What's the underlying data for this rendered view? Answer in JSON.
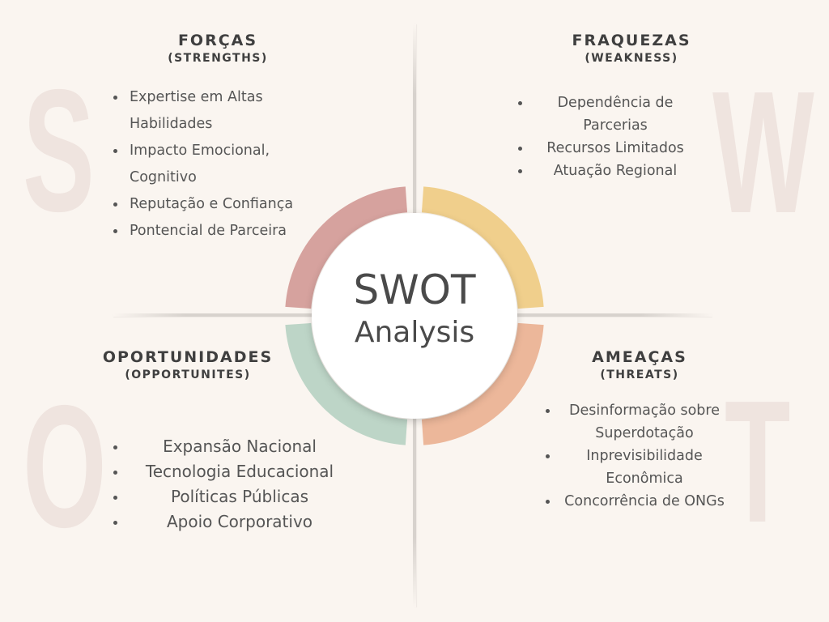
{
  "background_letters": [
    "S",
    "W",
    "O",
    "T"
  ],
  "center": {
    "title": "SWOT",
    "subtitle": "Analysis"
  },
  "colors": {
    "background": "#faf5f0",
    "strengths": "#d6a29e",
    "weakness": "#f0cf8c",
    "threats": "#ecb79a",
    "opportunities": "#bdd5c7",
    "watermark": "#efe4df",
    "text": "#555555",
    "heading": "#3f3f3f"
  },
  "quadrants": {
    "strengths": {
      "title": "FORÇAS",
      "subtitle": "(STRENGTHS)",
      "items": [
        "Expertise em Altas Habilidades",
        "Impacto Emocional, Cognitivo",
        "Reputação e Confiança",
        "Pontencial de Parceira"
      ]
    },
    "weakness": {
      "title": "FRAQUEZAS",
      "subtitle": "(WEAKNESS)",
      "items": [
        "Dependência de Parcerias",
        "Recursos Limitados",
        "Atuação Regional"
      ]
    },
    "opportunities": {
      "title": "OPORTUNIDADES",
      "subtitle": "(OPPORTUNITES)",
      "items": [
        "Expansão Nacional",
        "Tecnologia Educacional",
        "Políticas Públicas",
        "Apoio Corporativo"
      ]
    },
    "threats": {
      "title": "AMEAÇAS",
      "subtitle": "(THREATS)",
      "items": [
        "Desinformação sobre Superdotação",
        "Inprevisibilidade Econômica",
        "Concorrência de ONGs"
      ]
    }
  }
}
